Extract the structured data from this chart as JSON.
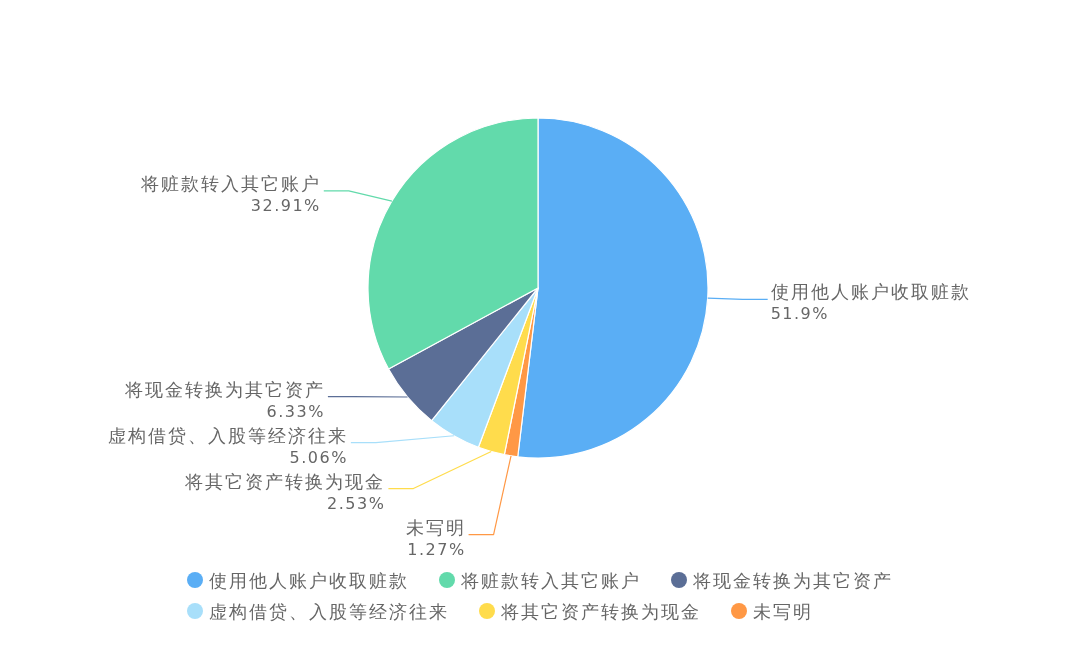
{
  "chart_data": {
    "type": "pie",
    "categories": [
      "使用他人账户收取赃款",
      "将赃款转入其它账户",
      "将现金转换为其它资产",
      "虚构借贷、入股等经济往来",
      "将其它资产转换为现金",
      "未写明"
    ],
    "values": [
      51.9,
      32.91,
      6.33,
      5.06,
      2.53,
      1.27
    ],
    "colors": [
      "#5aaef5",
      "#62daab",
      "#5b6e96",
      "#a8dffa",
      "#ffdc4c",
      "#ff9845"
    ],
    "value_labels": [
      "51.9%",
      "32.91%",
      "6.33%",
      "5.06%",
      "2.53%",
      "1.27%"
    ],
    "legend": "bottom"
  }
}
